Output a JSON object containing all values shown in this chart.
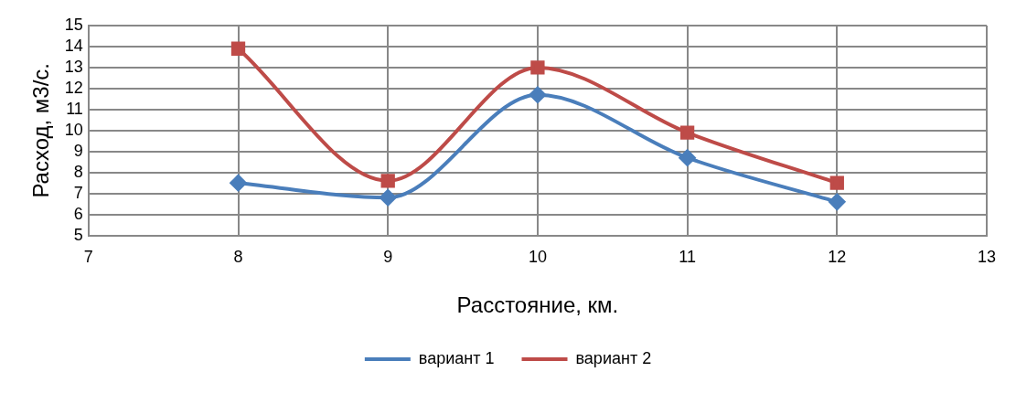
{
  "chart_data": {
    "type": "line",
    "xlabel": "Расстояние, км.",
    "ylabel": "Расход, м3/с.",
    "x": [
      8,
      9,
      10,
      11,
      12
    ],
    "series": [
      {
        "name": "вариант 1",
        "color": "#4a7ebb",
        "values": [
          7.5,
          6.8,
          11.7,
          8.7,
          6.6
        ],
        "marker": "diamond"
      },
      {
        "name": "вариант 2",
        "color": "#be4b48",
        "values": [
          13.9,
          7.6,
          13.0,
          9.9,
          7.5
        ],
        "marker": "square"
      }
    ],
    "xlim": [
      7,
      13
    ],
    "xticks": [
      7,
      8,
      9,
      10,
      11,
      12,
      13
    ],
    "ylim": [
      5,
      15
    ],
    "yticks": [
      5,
      6,
      7,
      8,
      9,
      10,
      11,
      12,
      13,
      14,
      15
    ],
    "grid": true,
    "legend": "bottom",
    "line_style": "solid"
  }
}
